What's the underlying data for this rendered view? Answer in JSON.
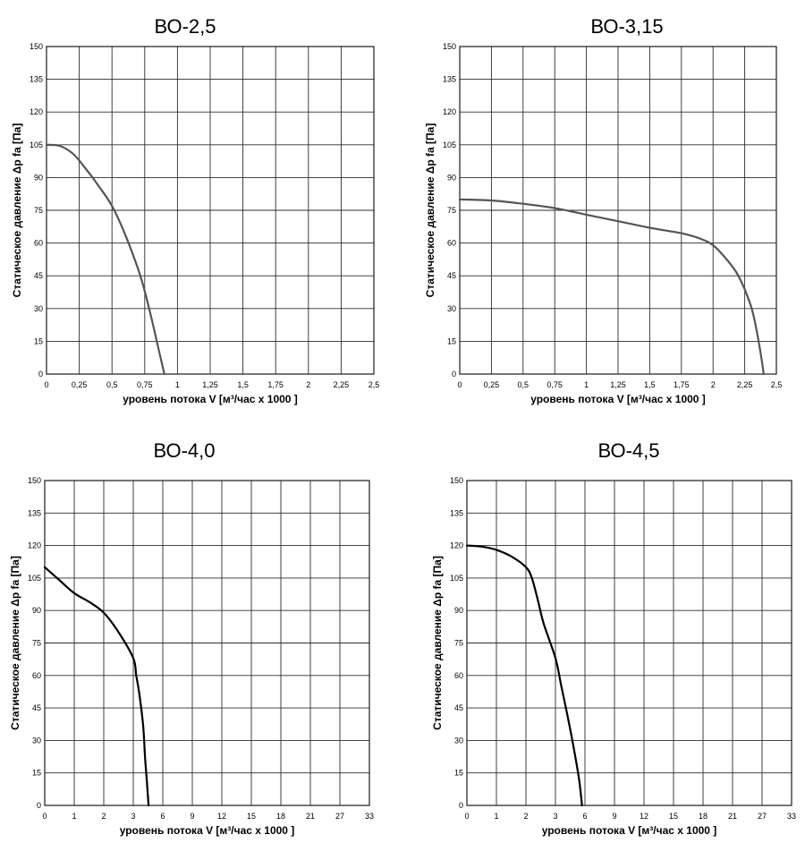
{
  "chart_data": [
    {
      "type": "line",
      "title": "ВО-2,5",
      "xlabel": "уровень потока  V [м³/час x 1000 ]",
      "ylabel": "Статическое давление  Δp fa [Па]",
      "xlim": [
        0,
        2.5
      ],
      "ylim": [
        0,
        150
      ],
      "x_ticks": [
        "0",
        "0,25",
        "0,5",
        "0,75",
        "1",
        "1,25",
        "1,5",
        "1,75",
        "2",
        "2,25",
        "2,5"
      ],
      "y_ticks": [
        "0",
        "15",
        "30",
        "45",
        "60",
        "75",
        "90",
        "105",
        "120",
        "135",
        "150"
      ],
      "grid": true,
      "line_color": "#555555",
      "series": [
        {
          "x": [
            0,
            0.1,
            0.2,
            0.3,
            0.4,
            0.5,
            0.6,
            0.7,
            0.75,
            0.8,
            0.85,
            0.9
          ],
          "y": [
            105,
            104.5,
            101,
            94,
            86,
            77,
            64,
            48,
            38,
            26,
            13,
            0
          ]
        }
      ]
    },
    {
      "type": "line",
      "title": "ВО-3,15",
      "xlabel": "уровень потока  V [м³/час x 1000 ]",
      "ylabel": "Статическое давление  Δp fa [Па]",
      "xlim": [
        0,
        2.5
      ],
      "ylim": [
        0,
        150
      ],
      "x_ticks": [
        "0",
        "0,25",
        "0,5",
        "0,75",
        "1",
        "1,25",
        "1,5",
        "1,75",
        "2",
        "2,25",
        "2,5"
      ],
      "y_ticks": [
        "0",
        "15",
        "30",
        "45",
        "60",
        "75",
        "90",
        "105",
        "120",
        "135",
        "150"
      ],
      "grid": true,
      "line_color": "#555555",
      "series": [
        {
          "x": [
            0,
            0.25,
            0.5,
            0.75,
            1,
            1.25,
            1.5,
            1.75,
            1.9,
            2.0,
            2.1,
            2.2,
            2.3,
            2.35,
            2.38,
            2.4
          ],
          "y": [
            80,
            79.5,
            78,
            76,
            73,
            70,
            67,
            64.5,
            62,
            59,
            53,
            45,
            31,
            18,
            8,
            0
          ]
        }
      ]
    },
    {
      "type": "line",
      "title": "ВО-4,0",
      "xlabel": "уровень потока  V [м³/час x 1000 ]",
      "ylabel": "Статическое давление  Δp fa [Па]",
      "x_ticks": [
        "0",
        "1",
        "2",
        "3",
        "6",
        "9",
        "12",
        "15",
        "18",
        "21",
        "27",
        "33"
      ],
      "y_ticks": [
        "0",
        "15",
        "30",
        "45",
        "60",
        "75",
        "90",
        "105",
        "120",
        "135",
        "150"
      ],
      "ylim": [
        0,
        150
      ],
      "grid": true,
      "line_color": "#000000",
      "series": [
        {
          "x": [
            0,
            0.5,
            1,
            1.5,
            2,
            2.5,
            3,
            3.3,
            3.6,
            4,
            4.2,
            4.4,
            4.55
          ],
          "y": [
            110,
            104,
            98,
            94,
            89,
            80,
            68,
            60,
            52,
            37,
            22,
            10,
            0
          ]
        }
      ]
    },
    {
      "type": "line",
      "title": "ВО-4,5",
      "xlabel": "уровень потока  V [м³/час x 1000 ]",
      "ylabel": "Статическое давление  Δp fa [Па]",
      "x_ticks": [
        "0",
        "1",
        "2",
        "3",
        "6",
        "9",
        "12",
        "15",
        "18",
        "21",
        "27",
        "33"
      ],
      "y_ticks": [
        "0",
        "15",
        "30",
        "45",
        "60",
        "75",
        "90",
        "105",
        "120",
        "135",
        "150"
      ],
      "ylim": [
        0,
        150
      ],
      "grid": true,
      "line_color": "#000000",
      "series": [
        {
          "x": [
            0,
            0.5,
            1,
            1.5,
            2,
            2.2,
            2.4,
            2.6,
            3,
            3.6,
            4.2,
            4.8,
            5.4,
            5.7
          ],
          "y": [
            120,
            119.5,
            118,
            115,
            110,
            105,
            95,
            84,
            68,
            55,
            42,
            28,
            12,
            0
          ]
        }
      ]
    }
  ]
}
